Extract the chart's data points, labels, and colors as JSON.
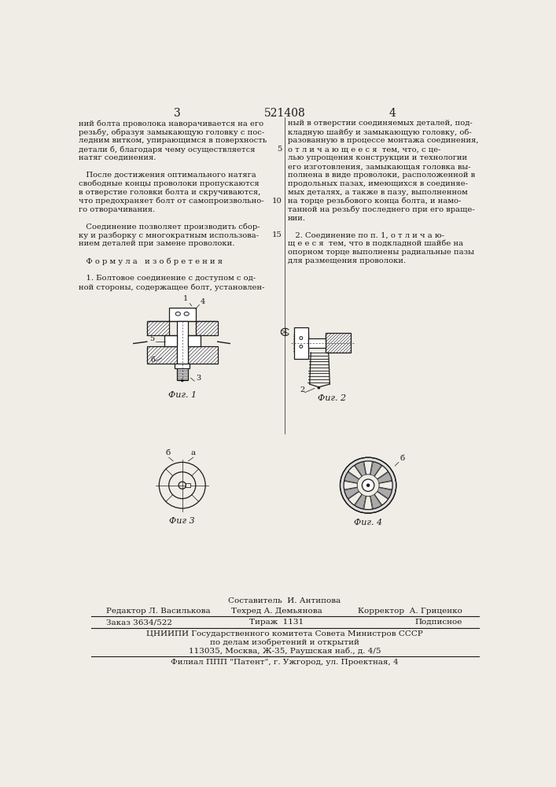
{
  "page_number_left": "3",
  "patent_number": "521408",
  "page_number_right": "4",
  "bg_color": "#f0ede6",
  "text_color": "#1a1a1a",
  "line_color": "#1a1a1a",
  "col1_text": [
    "ний болта проволока наворачивается на его",
    "резьбу, образуя замыкающую головку с пос-",
    "ледним витком, упирающимся в поверхность",
    "детали б, благодаря чему осуществляется",
    "натяг соединения.",
    "",
    "   После достижения оптимального натяга",
    "свободные концы проволоки пропускаются",
    "в отверстие головки болта и скручиваются,",
    "что предохраняет болт от самопроизвольно-",
    "го отворачивания.",
    "",
    "   Соединение позволяет производить сбор-",
    "ку и разборку с многократным использова-",
    "нием деталей при замене проволоки.",
    "",
    "   Ф о р м у л а   и з о б р е т е н и я",
    "",
    "   1. Болтовое соединение с доступом с од-",
    "ной стороны, содержащее болт, установлен-"
  ],
  "col2_text": [
    "ный в отверстии соединяемых деталей, под-",
    "кладную шайбу и замыкающую головку, об-",
    "разованную в процессе монтажа соединения,",
    "о т л и ч а ю щ е е с я  тем, что, с це-",
    "лью упрощения конструкции и технологии",
    "его изготовления, замыкающая головка вы-",
    "полнена в виде проволоки, расположенной в",
    "продольных пазах, имеющихся в соединяе-",
    "мых деталях, а также в пазу, выполненном",
    "на торце резьбового конца болта, и намо-",
    "танной на резьбу последнего при его враще-",
    "нии.",
    "",
    "   2. Соединение по п. 1, о т л и ч а ю-",
    "щ е е с я  тем, что в подкладной шайбе на",
    "опорном торце выполнены радиальные пазы",
    "для размещения проволоки."
  ],
  "col2_margin_numbers": [
    {
      "line": 3,
      "number": "5"
    },
    {
      "line": 9,
      "number": "10"
    },
    {
      "line": 13,
      "number": "15"
    }
  ],
  "fig1_caption": "Фиг. 1",
  "fig2_caption": "Фиг. 2",
  "fig3_caption": "Фиг 3",
  "fig4_caption": "Фиг. 4",
  "footer_line1": "Составитель  И. Антипова",
  "footer_line2_left": "Редактор Л. Василькова",
  "footer_line2_mid": "Техред А. Демьянова",
  "footer_line2_right": "Корректор  А. Гриценко",
  "footer_line3_left": "Заказ 3634/522",
  "footer_line3_mid": "Тираж  1131",
  "footer_line3_right": "Подписное",
  "footer_line4": "ЦНИИПИ Государственного комитета Совета Министров СССР",
  "footer_line5": "по делам изобретений и открытий",
  "footer_line6": "113035, Москва, Ж-35, Раушская наб., д. 4/5",
  "footer_line7": "Филиал ППП \"Патент\", г. Ужгород, ул. Проектная, 4"
}
